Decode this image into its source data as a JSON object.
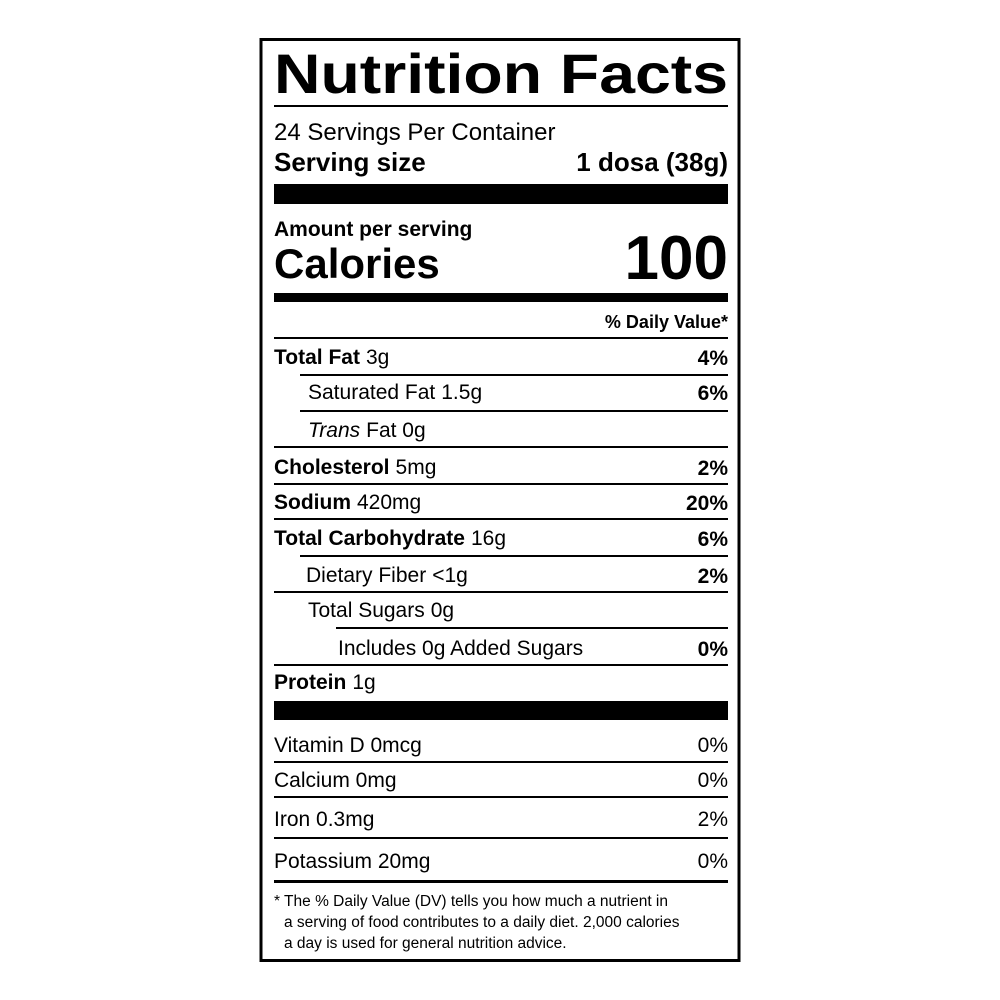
{
  "title": "Nutrition Facts",
  "servings": "24 Servings Per Container",
  "serving_size": {
    "label": "Serving size",
    "value": "1 dosa (38g)"
  },
  "amount_per_serving": "Amount per serving",
  "calories": {
    "label": "Calories",
    "value": 100
  },
  "daily_value_header": "% Daily Value*",
  "nutrients": [
    {
      "name": "Total Fat",
      "amount": "3g",
      "dv": "4%"
    },
    {
      "name": "Saturated Fat",
      "amount": "1.5g",
      "dv": "6%"
    },
    {
      "name": "Trans",
      "amount": "Fat 0g"
    },
    {
      "name": "Cholesterol",
      "amount": "5mg",
      "dv": "2%"
    },
    {
      "name": "Sodium",
      "amount": "420mg",
      "dv": "20%"
    },
    {
      "name": "Total Carbohydrate",
      "amount": "16g",
      "dv": "6%"
    },
    {
      "name": "Dietary Fiber",
      "amount": "<1g",
      "dv": "2%"
    },
    {
      "name": "Total Sugars",
      "amount": "0g"
    },
    {
      "name": "Includes 0g Added Sugars",
      "dv": "0%"
    },
    {
      "name": "Protein",
      "amount": "1g"
    }
  ],
  "vitamins": [
    {
      "name": "Vitamin D 0mcg",
      "dv": "0%"
    },
    {
      "name": "Calcium 0mg",
      "dv": "0%"
    },
    {
      "name": "Iron 0.3mg",
      "dv": "2%"
    },
    {
      "name": "Potassium 20mg",
      "dv": "0%"
    }
  ],
  "footnote": [
    "* The % Daily Value (DV) tells you how much a nutrient in",
    "a serving of food contributes to a daily diet. 2,000 calories",
    "a day is used for general nutrition advice."
  ]
}
